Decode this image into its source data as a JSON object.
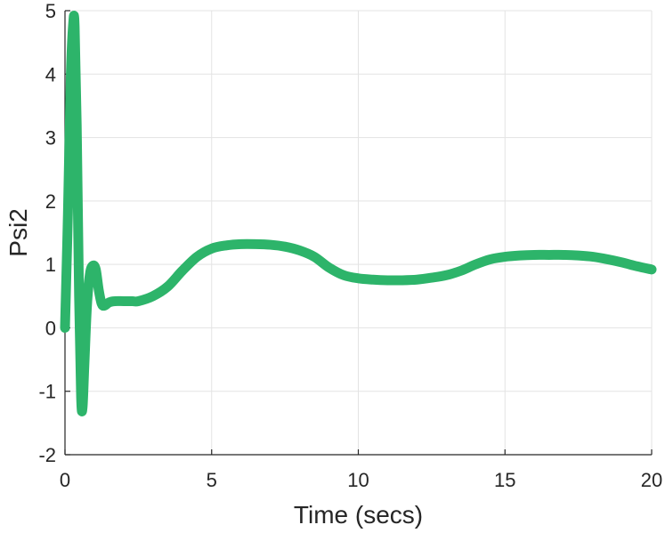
{
  "chart_data": {
    "type": "line",
    "title": "",
    "xlabel": "Time (secs)",
    "ylabel": "Psi2",
    "xlim": [
      0,
      20
    ],
    "ylim": [
      -2,
      5
    ],
    "xticks": [
      0,
      5,
      10,
      15,
      20
    ],
    "yticks": [
      -2,
      -1,
      0,
      1,
      2,
      3,
      4,
      5
    ],
    "xtick_labels": [
      "0",
      "5",
      "10",
      "15",
      "20"
    ],
    "ytick_labels": [
      "-2",
      "-1",
      "0",
      "1",
      "2",
      "3",
      "4",
      "5"
    ],
    "grid": true,
    "series": [
      {
        "color": "#2db46a",
        "x": [
          0,
          0.1,
          0.2,
          0.28,
          0.33,
          0.4,
          0.48,
          0.55,
          0.6,
          0.66,
          0.75,
          0.85,
          0.95,
          1.05,
          1.15,
          1.25,
          1.35,
          1.5,
          1.7,
          2.0,
          2.3,
          2.5,
          3.0,
          3.5,
          4.0,
          4.5,
          5.0,
          5.5,
          6.0,
          6.5,
          7.0,
          7.5,
          8.0,
          8.5,
          9.0,
          9.5,
          10.0,
          10.5,
          11.0,
          11.5,
          12.0,
          12.5,
          13.0,
          13.5,
          14.0,
          14.5,
          15.0,
          15.5,
          16.0,
          16.5,
          17.0,
          17.5,
          18.0,
          18.5,
          19.0,
          19.5,
          20.0
        ],
        "values": [
          0,
          1.8,
          4.0,
          4.8,
          4.75,
          3.2,
          0.5,
          -1.1,
          -1.25,
          -0.6,
          0.35,
          0.85,
          0.98,
          0.92,
          0.6,
          0.38,
          0.35,
          0.4,
          0.42,
          0.42,
          0.42,
          0.42,
          0.5,
          0.65,
          0.9,
          1.12,
          1.25,
          1.3,
          1.32,
          1.32,
          1.31,
          1.28,
          1.22,
          1.12,
          0.95,
          0.83,
          0.78,
          0.76,
          0.75,
          0.75,
          0.76,
          0.79,
          0.83,
          0.9,
          1.0,
          1.08,
          1.12,
          1.14,
          1.15,
          1.15,
          1.15,
          1.14,
          1.12,
          1.08,
          1.03,
          0.97,
          0.92
        ]
      }
    ]
  }
}
